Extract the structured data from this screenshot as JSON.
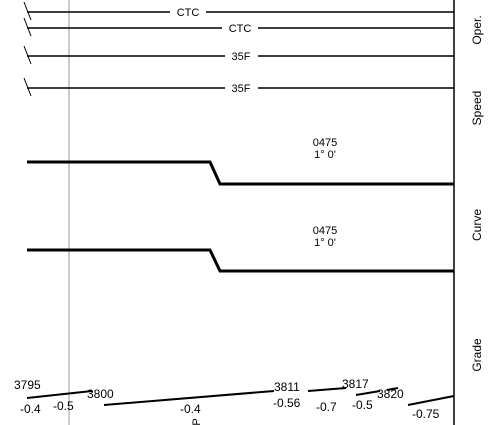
{
  "section_labels": {
    "operation": "Oper.",
    "speed": "Speed",
    "curve": "Curve",
    "grade": "Grade"
  },
  "operation_tracks": [
    {
      "label": "CTC"
    },
    {
      "label": "CTC"
    }
  ],
  "speed_tracks": [
    {
      "label": "35F"
    },
    {
      "label": "35F"
    }
  ],
  "curves": [
    {
      "id": "0475",
      "degree": "1° 0'"
    },
    {
      "id": "0475",
      "degree": "1° 0'"
    }
  ],
  "grade_stations": [
    "3795",
    "3800",
    "3811",
    "3817",
    "3820"
  ],
  "grade_values": [
    "-0.4",
    "-0.5",
    "-0.4",
    "-0.56",
    "-0.7",
    "-0.5",
    "-0.75"
  ],
  "marker_label": "P",
  "colors": {
    "line": "#000000",
    "marker_line": "#9a9a9a",
    "background": "#ffffff"
  }
}
